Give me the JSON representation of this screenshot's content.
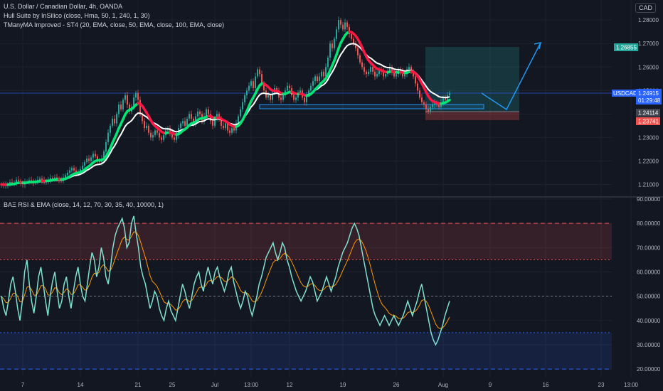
{
  "header": {
    "symbol_title": "U.S. Dollar / Canadian Dollar, 4h, OANDA",
    "indicator_hull": "Hull Suite by InSilico (close, Hma, 50, 1, 240, 1, 30)",
    "indicator_ma": "TManyMA Improved - ST4 (20, EMA, close, 50, EMA, close, 100, EMA, close)",
    "indicator_rsi": "BAΞ RSI & EMA (close, 14, 12, 70, 30, 35, 40, 10000, 1)",
    "currency": "CAD"
  },
  "price_labels": {
    "symbol": "USDCAD",
    "last_price": "1.24915",
    "countdown": "01:29:48",
    "target": "1.26855",
    "entry": "1.24114",
    "stop": "1.23741"
  },
  "colors": {
    "background": "#131722",
    "bull": "#26a69a",
    "bear": "#ef5350",
    "hull_up": "#00e676",
    "hull_down": "#ff1744",
    "ema": "#ffffff",
    "rsi": "#7fe0d0",
    "rsi_ema": "#ff9800",
    "accent": "#2962ff",
    "drawing": "#2196f3"
  },
  "chart_data": [
    {
      "type": "candlestick",
      "title": "U.S. Dollar / Canadian Dollar, 4h, OANDA",
      "ylim": [
        1.205,
        1.2855
      ],
      "y_ticks": [
        "1.28000",
        "1.27000",
        "1.26000",
        "1.25000",
        "1.24000",
        "1.23000",
        "1.22000",
        "1.21000"
      ],
      "y_tick_values": [
        1.28,
        1.27,
        1.26,
        1.25,
        1.24,
        1.23,
        1.22,
        1.21
      ],
      "x_ticks": [
        "7",
        "14",
        "21",
        "25",
        "Jul",
        "13:00",
        "12",
        "19",
        "26",
        "Aug",
        "9",
        "16",
        "23",
        "13:00"
      ],
      "x_tick_index": [
        10,
        37,
        64,
        80,
        100,
        117,
        135,
        160,
        185,
        207,
        229,
        255,
        281,
        295
      ],
      "closes": [
        1.21,
        1.2095,
        1.2098,
        1.21,
        1.211,
        1.2105,
        1.2108,
        1.212,
        1.2115,
        1.2105,
        1.21,
        1.211,
        1.2112,
        1.2118,
        1.2115,
        1.2108,
        1.2112,
        1.212,
        1.2125,
        1.2118,
        1.211,
        1.2115,
        1.212,
        1.2128,
        1.2122,
        1.213,
        1.2125,
        1.212,
        1.2115,
        1.213,
        1.214,
        1.215,
        1.216,
        1.217,
        1.216,
        1.215,
        1.2155,
        1.2165,
        1.218,
        1.2195,
        1.221,
        1.22,
        1.2215,
        1.223,
        1.222,
        1.22,
        1.2195,
        1.221,
        1.224,
        1.228,
        1.232,
        1.235,
        1.238,
        1.236,
        1.24,
        1.244,
        1.242,
        1.246,
        1.248,
        1.244,
        1.241,
        1.243,
        1.247,
        1.249,
        1.246,
        1.24,
        1.237,
        1.234,
        1.235,
        1.232,
        1.23,
        1.231,
        1.233,
        1.232,
        1.23,
        1.229,
        1.231,
        1.233,
        1.234,
        1.232,
        1.23,
        1.229,
        1.231,
        1.234,
        1.236,
        1.237,
        1.235,
        1.238,
        1.24,
        1.238,
        1.236,
        1.239,
        1.241,
        1.24,
        1.237,
        1.239,
        1.242,
        1.24,
        1.237,
        1.235,
        1.238,
        1.24,
        1.238,
        1.235,
        1.234,
        1.236,
        1.233,
        1.232,
        1.234,
        1.233,
        1.236,
        1.239,
        1.242,
        1.245,
        1.248,
        1.25,
        1.252,
        1.254,
        1.251,
        1.256,
        1.259,
        1.257,
        1.253,
        1.25,
        1.247,
        1.248,
        1.246,
        1.249,
        1.251,
        1.25,
        1.247,
        1.246,
        1.248,
        1.25,
        1.252,
        1.251,
        1.248,
        1.246,
        1.247,
        1.249,
        1.25,
        1.247,
        1.245,
        1.248,
        1.25,
        1.252,
        1.254,
        1.256,
        1.254,
        1.256,
        1.258,
        1.256,
        1.26,
        1.264,
        1.27,
        1.268,
        1.272,
        1.276,
        1.28,
        1.278,
        1.276,
        1.279,
        1.277,
        1.274,
        1.272,
        1.27,
        1.268,
        1.265,
        1.262,
        1.26,
        1.258,
        1.257,
        1.258,
        1.26,
        1.258,
        1.256,
        1.257,
        1.259,
        1.258,
        1.256,
        1.257,
        1.258,
        1.26,
        1.258,
        1.256,
        1.257,
        1.259,
        1.258,
        1.256,
        1.257,
        1.259,
        1.26,
        1.258,
        1.256,
        1.253,
        1.25,
        1.247,
        1.245,
        1.244,
        1.242,
        1.241,
        1.243,
        1.244,
        1.245,
        1.244,
        1.243,
        1.245,
        1.247,
        1.246,
        1.248,
        1.249
      ]
    },
    {
      "type": "line",
      "title": "BAΞ RSI & EMA (close, 14, 12, 70, 30, 35, 40, 10000, 1)",
      "ylim": [
        18,
        90
      ],
      "y_ticks": [
        "90.00000",
        "80.00000",
        "70.00000",
        "60.00000",
        "50.00000",
        "40.00000",
        "30.00000",
        "20.00000"
      ],
      "y_tick_values": [
        90,
        80,
        70,
        60,
        50,
        40,
        30,
        20
      ],
      "levels": {
        "upper": 80,
        "upper_mid": 65,
        "middle": 50,
        "lower_mid": 35,
        "lower": 20
      },
      "rsi": [
        50,
        45,
        42,
        48,
        55,
        58,
        52,
        45,
        40,
        48,
        60,
        65,
        55,
        48,
        43,
        50,
        58,
        62,
        55,
        48,
        42,
        50,
        56,
        60,
        52,
        45,
        48,
        55,
        58,
        50,
        45,
        52,
        58,
        62,
        55,
        50,
        48,
        55,
        62,
        68,
        65,
        58,
        62,
        70,
        66,
        58,
        55,
        62,
        70,
        75,
        78,
        80,
        82,
        78,
        70,
        72,
        80,
        83,
        76,
        70,
        62,
        58,
        55,
        50,
        45,
        48,
        52,
        50,
        45,
        42,
        40,
        45,
        48,
        44,
        42,
        40,
        45,
        50,
        55,
        52,
        48,
        45,
        50,
        55,
        58,
        60,
        55,
        52,
        58,
        62,
        58,
        55,
        60,
        62,
        58,
        55,
        52,
        55,
        60,
        62,
        56,
        52,
        48,
        45,
        48,
        52,
        50,
        45,
        42,
        46,
        50,
        55,
        58,
        62,
        66,
        68,
        70,
        72,
        68,
        65,
        68,
        72,
        70,
        65,
        62,
        58,
        55,
        52,
        50,
        48,
        50,
        52,
        55,
        58,
        56,
        52,
        48,
        50,
        52,
        55,
        58,
        55,
        52,
        55,
        58,
        62,
        65,
        68,
        70,
        72,
        75,
        78,
        80,
        78,
        75,
        70,
        65,
        60,
        55,
        50,
        45,
        42,
        40,
        38,
        40,
        42,
        40,
        38,
        40,
        42,
        40,
        38,
        40,
        42,
        45,
        48,
        45,
        42,
        45,
        48,
        52,
        55,
        50,
        45,
        40,
        35,
        32,
        30,
        32,
        35,
        38,
        42,
        45,
        48
      ]
    }
  ]
}
